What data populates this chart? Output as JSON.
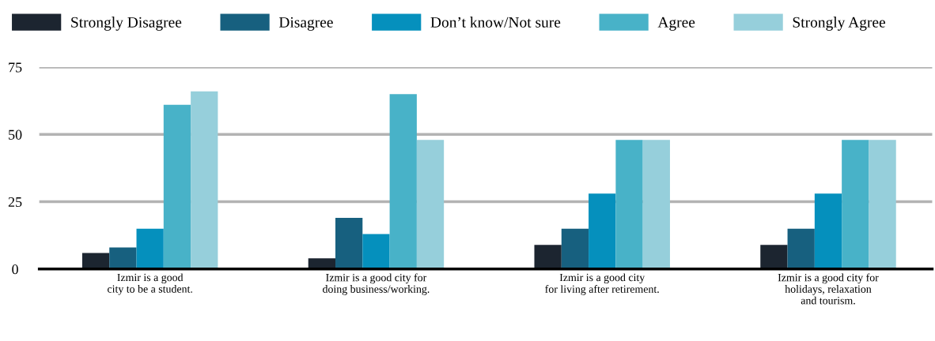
{
  "chart_data": {
    "type": "bar",
    "categories": [
      "Izmir is a good\ncity to be a student.",
      "Izmir is a good city for\ndoing business/working.",
      "Izmir is a good city\nfor living after retirement.",
      "Izmir is a good city for\nholidays, relaxation\nand tourism."
    ],
    "series": [
      {
        "name": "Strongly Disagree",
        "color": "#1c2530",
        "values": [
          6,
          4,
          9,
          9
        ]
      },
      {
        "name": "Disagree",
        "color": "#17607f",
        "values": [
          8,
          19,
          15,
          15
        ]
      },
      {
        "name": "Don’t know/Not sure",
        "color": "#0590bd",
        "values": [
          15,
          13,
          28,
          28
        ]
      },
      {
        "name": "Agree",
        "color": "#48b2c8",
        "values": [
          61,
          65,
          48,
          48
        ]
      },
      {
        "name": "Strongly Agree",
        "color": "#96cfdb",
        "values": [
          66,
          48,
          48,
          48
        ]
      }
    ],
    "ylim": [
      0,
      75
    ],
    "yticks": [
      0,
      25,
      50,
      75
    ],
    "grid": "y",
    "legend": "top"
  }
}
